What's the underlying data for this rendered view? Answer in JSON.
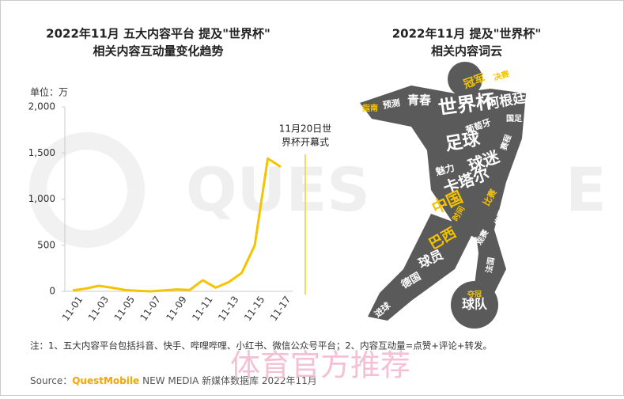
{
  "chart_data": {
    "type": "line",
    "title": [
      "2022年11月 五大内容平台 提及\"世界杯\"",
      "相关内容互动量变化趋势"
    ],
    "y_unit": "单位：万",
    "categories": [
      "11-01",
      null,
      "11-03",
      null,
      "11-05",
      null,
      "11-07",
      null,
      "11-09",
      null,
      "11-11",
      null,
      "11-13",
      null,
      "11-15",
      null,
      "11-17"
    ],
    "series": [
      {
        "name": "互动量",
        "color": "#f5c400",
        "values": [
          10,
          30,
          60,
          40,
          15,
          5,
          0,
          10,
          20,
          15,
          120,
          40,
          100,
          200,
          500,
          1440,
          1350
        ]
      }
    ],
    "ylim": [
      0,
      2000
    ],
    "yticks": [
      0,
      500,
      {
        "value": 1000,
        "label": "1,000"
      },
      {
        "value": 1500,
        "label": "1,500"
      },
      {
        "value": 2000,
        "label": "2,000"
      }
    ],
    "annotation": [
      "11月20日世",
      "界杯开幕式"
    ]
  },
  "word_cloud": {
    "title": [
      "2022年11月 提及\"世界杯\"",
      "相关内容词云"
    ],
    "words": [
      "世界杯",
      "足球",
      "球迷",
      "阿根廷",
      "卡塔尔",
      "中国",
      "巴西",
      "球员",
      "冠军",
      "青春",
      "德国",
      "球队",
      "葡萄牙",
      "魅力",
      "进球",
      "决赛",
      "预测",
      "指南",
      "国足",
      "夺冠",
      "比赛",
      "梅西",
      "观赛",
      "时间",
      "法国",
      "赛程"
    ]
  },
  "watermark": [
    "QUES",
    "E"
  ],
  "stamp": "体育官方推荐",
  "note": "注：1、五大内容平台包括抖音、快手、哔哩哔哩、小红书、微信公众号平台；2、内容互动量=点赞+评论+转发。",
  "source": {
    "label": "Source：",
    "brand": "QuestMobile",
    "rest": "NEW MEDIA 新媒体数据库 2022年11月"
  }
}
